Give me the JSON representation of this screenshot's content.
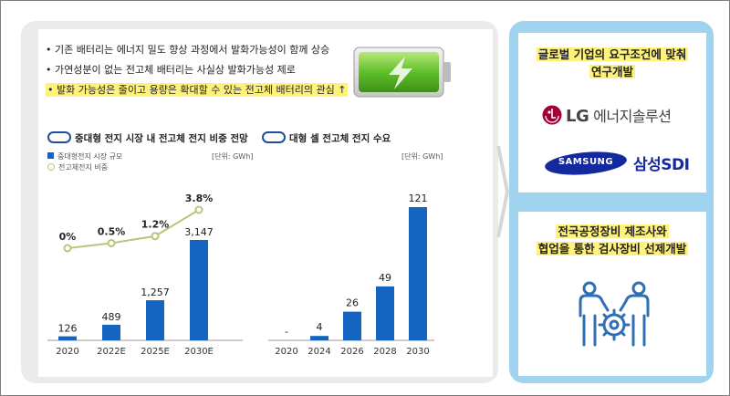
{
  "bullets": [
    "기존 배터리는 에너지 밀도 향상 과정에서 발화가능성이 함께 상승",
    "가연성분이 없는 전고체 배터리는 사실상 발화가능성 제로",
    "발화 가능성은 줄이고 용량은 확대할 수 있는 전고체 배터리의 관심 ↑"
  ],
  "chart_data": [
    {
      "type": "bar",
      "title": "중대형 전지 시장 내 전고체 전지 비중 전망",
      "unit": "[단위: GWh]",
      "categories": [
        "2020",
        "2022E",
        "2025E",
        "2030E"
      ],
      "series": [
        {
          "name": "중대형전지 시장 규모",
          "type": "bar",
          "values": [
            126,
            489,
            1257,
            3147
          ],
          "labels": [
            "126",
            "489",
            "1,257",
            "3,147"
          ]
        },
        {
          "name": "전고체전지 비중",
          "type": "line",
          "values": [
            0,
            0.5,
            1.2,
            3.8
          ],
          "labels": [
            "0%",
            "0.5%",
            "1.2%",
            "3.8%"
          ]
        }
      ],
      "colors": {
        "bar": "#1565c0",
        "line": "#b5c77a"
      }
    },
    {
      "type": "bar",
      "title": "대형 셀 전고체 전지 수요",
      "unit": "[단위: GWh]",
      "categories": [
        "2020",
        "2024",
        "2026",
        "2028",
        "2030"
      ],
      "values": [
        0,
        4,
        26,
        49,
        121
      ],
      "labels": [
        "-",
        "4",
        "26",
        "49",
        "121"
      ],
      "colors": {
        "bar": "#1565c0"
      }
    }
  ],
  "right": {
    "box1_lines": [
      "글로벌 기업의 요구조건에 맞춰",
      "연구개발"
    ],
    "lg_text": "LG 에너지솔루션",
    "lg_logo_text": "LG",
    "samsung_logo_text": "SAMSUNG",
    "samsung_sdi_text": "삼성SDI",
    "box2_lines": [
      "전국공정장비 제조사와",
      "협업을 통한 검사장비 선제개발"
    ]
  },
  "colors": {
    "accent": "#1565c0",
    "highlight": "#fff27a",
    "right_bg": "#9fd3ee",
    "lg_red": "#a50034",
    "samsung_blue": "#1428a0"
  }
}
